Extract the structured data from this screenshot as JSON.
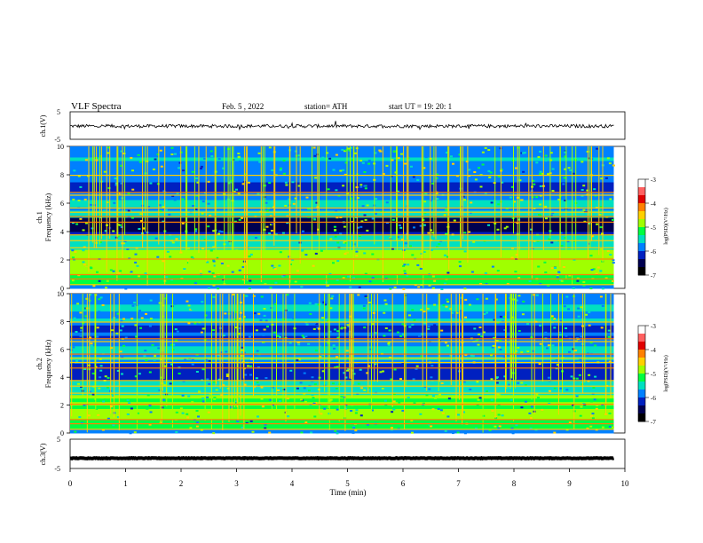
{
  "header": {
    "title": "VLF  Spectra",
    "date": "Feb. 5  , 2022",
    "station": "station= ATH",
    "start": "start  UT  =    19: 20: 1"
  },
  "colorbar": {
    "label": "log(PSD)(V²/Hz)",
    "ticks": [
      "-3",
      "-4",
      "-5",
      "-6",
      "-7"
    ],
    "colors": [
      "#ffffff",
      "#ff6060",
      "#e00000",
      "#ff8000",
      "#ffd000",
      "#a0ff00",
      "#00ff40",
      "#00e0c0",
      "#0080ff",
      "#0020c0",
      "#000050",
      "#000000"
    ]
  },
  "chart_data": [
    {
      "type": "line",
      "panel": "ch1-waveform",
      "ylabel": "ch.1(V)",
      "yticks": [
        "5",
        "-5"
      ],
      "ylim": [
        -5,
        5
      ],
      "xlim": [
        0,
        10
      ],
      "series": [
        {
          "baseline": -0.2,
          "noise_amplitude": 0.6,
          "color": "#000000"
        }
      ]
    },
    {
      "type": "heatmap",
      "panel": "ch1-spectrogram",
      "ylabel": "ch.1\nFrequency (kHz)",
      "ylabel_lines": [
        "ch.1",
        "Frequency  (kHz)"
      ],
      "yticks": [
        "0",
        "2",
        "4",
        "6",
        "8",
        "10"
      ],
      "ylim": [
        0,
        10
      ],
      "xlim": [
        0,
        9.8
      ],
      "zlim": [
        -7,
        -3
      ]
    },
    {
      "type": "heatmap",
      "panel": "ch2-spectrogram",
      "ylabel_lines": [
        "ch.2",
        "Frequency  (kHz)"
      ],
      "yticks": [
        "0",
        "2",
        "4",
        "6",
        "8",
        "10"
      ],
      "ylim": [
        0,
        10
      ],
      "xlim": [
        0,
        9.8
      ],
      "zlim": [
        -7,
        -3
      ]
    },
    {
      "type": "line",
      "panel": "ch3-waveform",
      "ylabel": "ch.3(V)",
      "yticks": [
        "5",
        "-5"
      ],
      "ylim": [
        -5,
        5
      ],
      "xlim": [
        0,
        10
      ],
      "series": [
        {
          "baseline": -1.5,
          "noise_amplitude": 0.1,
          "color": "#000000"
        }
      ]
    }
  ],
  "xaxis": {
    "label": "Time  (min)",
    "ticks": [
      "0",
      "1",
      "2",
      "3",
      "4",
      "5",
      "6",
      "7",
      "8",
      "9",
      "10"
    ],
    "xlim": [
      0,
      10
    ]
  }
}
